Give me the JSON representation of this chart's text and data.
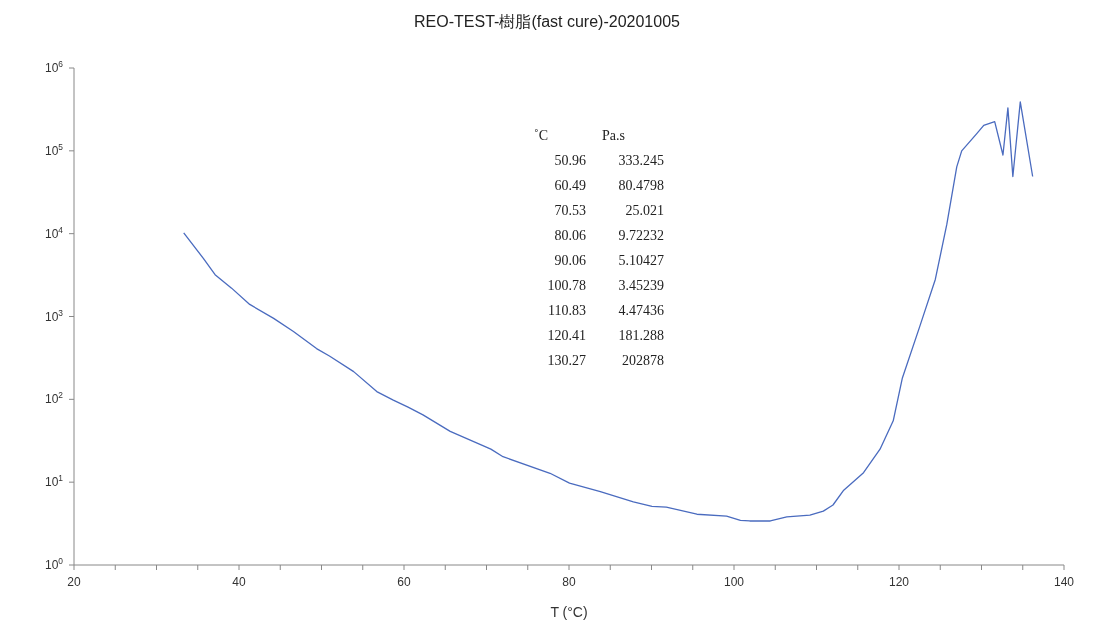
{
  "chart_data": {
    "type": "line",
    "title": "REO-TEST-樹脂(fast cure)-20201005",
    "xlabel": "T (°C)",
    "x": [
      33.3,
      35.7,
      37.1,
      39.1,
      41.3,
      44.2,
      46.6,
      49.4,
      50.96,
      53.9,
      56.7,
      58.7,
      60.49,
      62.3,
      65.6,
      70.53,
      72.0,
      77.7,
      80.06,
      83.8,
      87.8,
      90.06,
      91.8,
      95.5,
      99.1,
      100.78,
      101.9,
      104.4,
      106.4,
      109.2,
      110.83,
      112.0,
      113.3,
      115.7,
      117.7,
      119.3,
      120.41,
      122.5,
      124.4,
      125.8,
      127.0,
      127.6,
      129.4,
      130.27,
      131.6,
      132.6,
      133.2,
      133.8,
      134.7,
      136.2
    ],
    "series": [
      {
        "color": "#4a6bbf",
        "values": [
          10200,
          5000,
          3200,
          2200,
          1400,
          950,
          660,
          410,
          333.245,
          216,
          124,
          98,
          80.4798,
          65,
          41,
          25.021,
          20.3,
          12.8,
          9.72232,
          7.7,
          5.8,
          5.10427,
          5.0,
          4.1,
          3.9,
          3.45239,
          3.4,
          3.4,
          3.8,
          4.0,
          4.47436,
          5.3,
          8.0,
          13,
          25,
          55,
          181.288,
          750,
          2800,
          13000,
          64000,
          100000,
          160000,
          202878,
          225000,
          89000,
          330000,
          49000,
          390000,
          49000
        ]
      }
    ],
    "log": "y",
    "xlim": [
      20,
      140
    ],
    "ylim": [
      1,
      1000000
    ],
    "xticks": [
      20,
      {
        "value": 25,
        "label": null
      },
      {
        "value": 30,
        "label": null
      },
      {
        "value": 35,
        "label": null
      },
      40,
      {
        "value": 45,
        "label": null
      },
      {
        "value": 50,
        "label": null
      },
      {
        "value": 55,
        "label": null
      },
      60,
      {
        "value": 65,
        "label": null
      },
      {
        "value": 70,
        "label": null
      },
      {
        "value": 75,
        "label": null
      },
      80,
      {
        "value": 85,
        "label": null
      },
      {
        "value": 90,
        "label": null
      },
      {
        "value": 95,
        "label": null
      },
      100,
      {
        "value": 105,
        "label": null
      },
      {
        "value": 110,
        "label": null
      },
      {
        "value": 115,
        "label": null
      },
      120,
      {
        "value": 125,
        "label": null
      },
      {
        "value": 130,
        "label": null
      },
      {
        "value": 135,
        "label": null
      },
      140
    ],
    "yticks": [
      {
        "value": 1,
        "label": "10$^{0}$"
      },
      {
        "value": 10,
        "label": "10$^{1}$"
      },
      {
        "value": 100,
        "label": "10$^{2}$"
      },
      {
        "value": 1000,
        "label": "10$^{3}$"
      },
      {
        "value": 10000,
        "label": "10$^{4}$"
      },
      {
        "value": 100000,
        "label": "10$^{5}$"
      },
      {
        "value": 1000000,
        "label": "10$^{6}$"
      }
    ],
    "grid": false,
    "legend": false,
    "marker": "none",
    "line_style": "solid",
    "annotations": [
      "˚C",
      "Pa.s",
      "50.96",
      "333.245",
      "60.49",
      "80.4798",
      "70.53",
      "25.021",
      "80.06",
      "9.72232",
      "90.06",
      "5.10427",
      "100.78",
      "3.45239",
      "110.83",
      "4.47436",
      "120.41",
      "181.288",
      "130.27",
      "202878"
    ]
  }
}
